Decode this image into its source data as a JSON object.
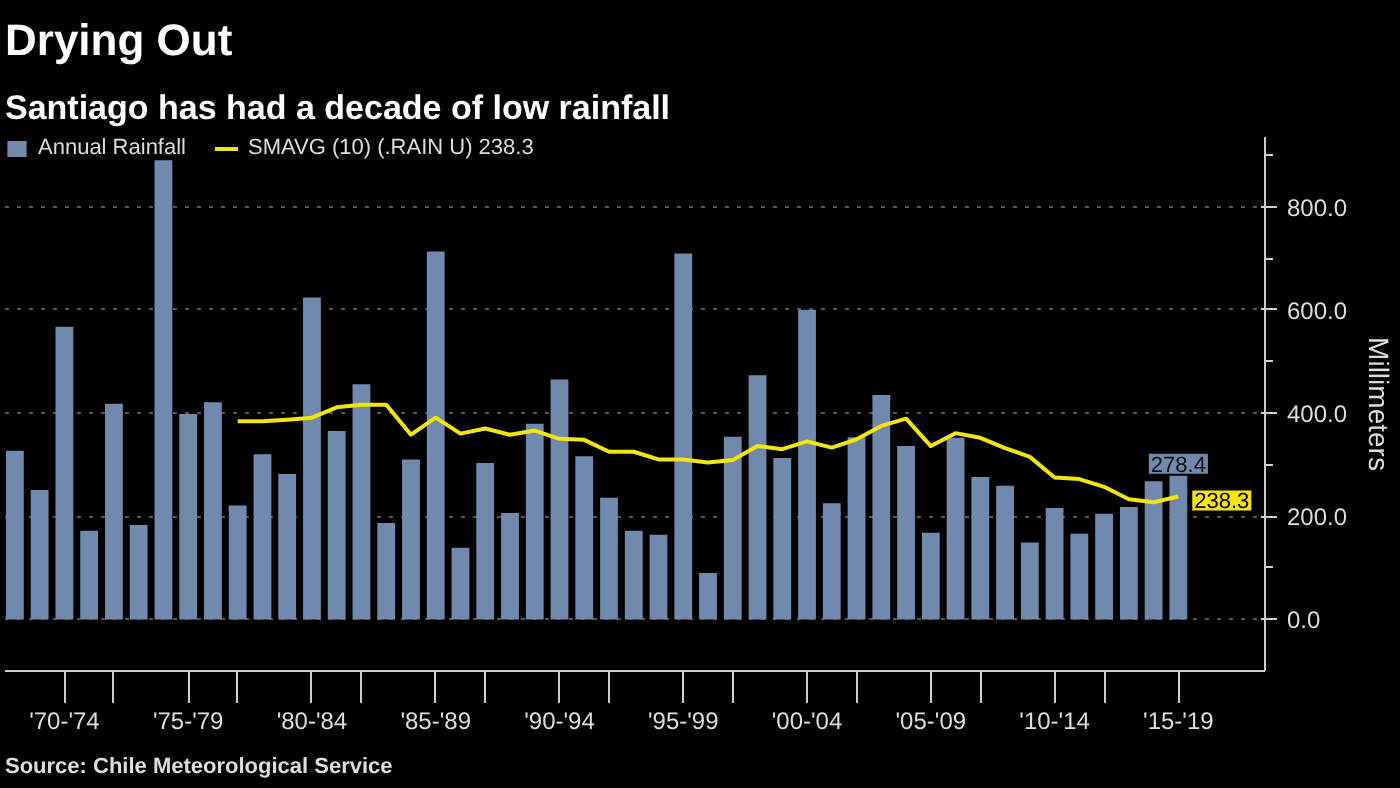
{
  "chart_data": {
    "type": "bar",
    "title": "Drying Out",
    "subtitle": "Santiago has had a decade of low rainfall",
    "ylabel": "Millimeters",
    "annotations": [
      "Source: Chile Meteorological Service"
    ],
    "categories": [
      null,
      null,
      "'70-'74",
      null,
      null,
      null,
      null,
      "'75-'79",
      null,
      null,
      null,
      null,
      "'80-'84",
      null,
      null,
      null,
      null,
      "'85-'89",
      null,
      null,
      null,
      null,
      "'90-'94",
      null,
      null,
      null,
      null,
      "'95-'99",
      null,
      null,
      null,
      null,
      "'00-'04",
      null,
      null,
      null,
      null,
      "'05-'09",
      null,
      null,
      null,
      null,
      "'10-'14",
      null,
      null,
      null,
      null,
      "'15-'19"
    ],
    "series": [
      {
        "name": "Annual Rainfall",
        "color": "#7189ac",
        "values": [
          327,
          251,
          567,
          172,
          418,
          183,
          890,
          398,
          421,
          221,
          320,
          282,
          624,
          365,
          456,
          187,
          310,
          713,
          139,
          303,
          206,
          379,
          465,
          316,
          236,
          172,
          164,
          709,
          90,
          354,
          473,
          313,
          600,
          225,
          353,
          435,
          336,
          168,
          352,
          276,
          259,
          149,
          216,
          166,
          205,
          218,
          268,
          278.4
        ],
        "value_labels": [
          null,
          null,
          null,
          null,
          null,
          null,
          null,
          null,
          null,
          null,
          null,
          null,
          null,
          null,
          null,
          null,
          null,
          null,
          null,
          null,
          null,
          null,
          null,
          null,
          null,
          null,
          null,
          null,
          null,
          null,
          null,
          null,
          null,
          null,
          null,
          null,
          null,
          null,
          null,
          null,
          null,
          null,
          null,
          null,
          null,
          null,
          null,
          "278.4"
        ]
      },
      {
        "name": "SMAVG (10) (.RAIN U) 238.3",
        "type": "line",
        "color": "#f2e40c",
        "values": [
          null,
          null,
          null,
          null,
          null,
          null,
          null,
          null,
          null,
          384,
          384,
          387,
          391,
          411,
          416,
          416,
          358,
          391,
          360,
          370,
          358,
          366,
          350,
          348,
          325,
          325,
          310,
          310,
          304,
          309,
          336,
          330,
          345,
          333,
          349,
          375,
          389,
          336,
          361,
          352,
          332,
          315,
          275,
          272,
          257,
          233,
          227,
          238.3
        ],
        "value_labels": [
          null,
          null,
          null,
          null,
          null,
          null,
          null,
          null,
          null,
          null,
          null,
          null,
          null,
          null,
          null,
          null,
          null,
          null,
          null,
          null,
          null,
          null,
          null,
          null,
          null,
          null,
          null,
          null,
          null,
          null,
          null,
          null,
          null,
          null,
          null,
          null,
          null,
          null,
          null,
          null,
          null,
          null,
          null,
          null,
          null,
          null,
          null,
          "238.3"
        ]
      }
    ],
    "ylim": [
      -100,
      935
    ],
    "yticks": [
      {
        "value": 0,
        "label": "0.0"
      },
      {
        "value": 200,
        "label": "200.0"
      },
      {
        "value": 400,
        "label": "400.0"
      },
      {
        "value": 600,
        "label": "600.0"
      },
      {
        "value": 800,
        "label": "800.0"
      }
    ],
    "grid": "y",
    "legend": "top left"
  }
}
